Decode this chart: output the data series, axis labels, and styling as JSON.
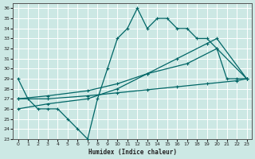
{
  "xlabel": "Humidex (Indice chaleur)",
  "bg_color": "#cce8e4",
  "grid_color": "#aad4d0",
  "line_color": "#006666",
  "xlim": [
    -0.5,
    23.5
  ],
  "ylim": [
    23,
    36.5
  ],
  "xticks": [
    0,
    1,
    2,
    3,
    4,
    5,
    6,
    7,
    8,
    9,
    10,
    11,
    12,
    13,
    14,
    15,
    16,
    17,
    18,
    19,
    20,
    21,
    22,
    23
  ],
  "yticks": [
    23,
    24,
    25,
    26,
    27,
    28,
    29,
    30,
    31,
    32,
    33,
    34,
    35,
    36
  ],
  "line1_x": [
    0,
    1,
    2,
    3,
    4,
    5,
    6,
    7,
    8,
    9,
    10,
    11,
    12,
    13,
    14,
    15,
    16,
    17,
    18,
    19,
    20,
    21,
    22,
    23
  ],
  "line1_y": [
    29,
    27,
    26,
    26,
    26,
    25,
    24,
    23,
    27,
    30,
    33,
    34,
    36,
    34,
    35,
    35,
    34,
    34,
    33,
    33,
    32,
    29,
    29,
    29
  ],
  "line2_x": [
    0,
    3,
    7,
    10,
    13,
    16,
    19,
    22,
    23
  ],
  "line2_y": [
    27,
    27,
    27.3,
    27.6,
    27.9,
    28.2,
    28.5,
    28.8,
    29
  ],
  "line3_x": [
    0,
    3,
    7,
    10,
    13,
    17,
    20,
    23
  ],
  "line3_y": [
    27,
    27.3,
    27.8,
    28.5,
    29.5,
    30.5,
    32,
    29
  ],
  "line4_x": [
    0,
    3,
    7,
    10,
    13,
    16,
    19,
    20,
    23
  ],
  "line4_y": [
    26,
    26.5,
    27,
    28,
    29.5,
    31,
    32.5,
    33,
    29
  ]
}
